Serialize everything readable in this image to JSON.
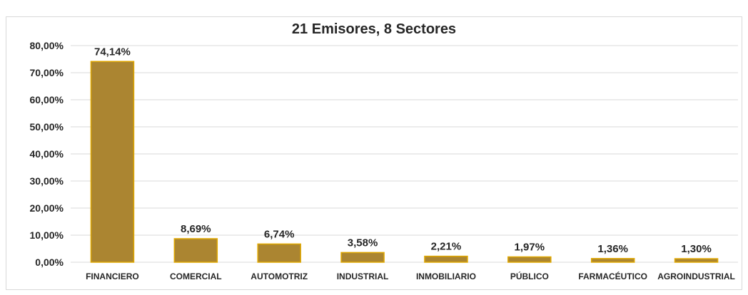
{
  "chart_data": {
    "type": "bar",
    "title": "21 Emisores, 8 Sectores",
    "xlabel": "",
    "ylabel": "",
    "categories": [
      "FINANCIERO",
      "COMERCIAL",
      "AUTOMOTRIZ",
      "INDUSTRIAL",
      "INMOBILIARIO",
      "PÚBLICO",
      "FARMACÉUTICO",
      "AGROINDUSTRIAL"
    ],
    "values": [
      74.14,
      8.69,
      6.74,
      3.58,
      2.21,
      1.97,
      1.36,
      1.3
    ],
    "value_labels": [
      "74,14%",
      "8,69%",
      "6,74%",
      "3,58%",
      "2,21%",
      "1,97%",
      "1,36%",
      "1,30%"
    ],
    "ylim": [
      0,
      80
    ],
    "yticks": [
      0,
      10,
      20,
      30,
      40,
      50,
      60,
      70,
      80
    ],
    "ytick_labels": [
      "0,00%",
      "10,00%",
      "20,00%",
      "30,00%",
      "40,00%",
      "50,00%",
      "60,00%",
      "70,00%",
      "80,00%"
    ],
    "grid": true,
    "legend": "none",
    "colors": {
      "bar_fill": "#ab8531",
      "bar_stroke": "#e0a800",
      "grid": "#d9d9d9",
      "text": "#262626"
    }
  }
}
